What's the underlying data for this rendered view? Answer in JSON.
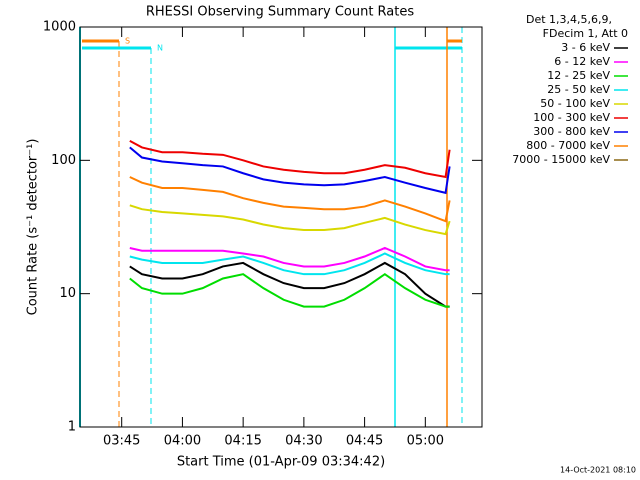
{
  "chart_data": {
    "type": "line",
    "title": "RHESSI Observing Summary Count Rates",
    "x_label": "Start Time (01-Apr-09 03:34:42)",
    "y_label": "Count Rate (s⁻¹ detector⁻¹)",
    "legend_header": [
      "Det 1,3,4,5,6,9,",
      "FDecim 1, Att 0"
    ],
    "footer": "14-Oct-2021 08:10",
    "annotations": [
      "S",
      "N"
    ],
    "log_y": true,
    "legend": "right",
    "xlim": [
      "03:34:42",
      "05:14:00"
    ],
    "xticks": [
      "03:45",
      "04:00",
      "04:15",
      "04:30",
      "04:45",
      "05:00"
    ],
    "ylim": [
      1,
      1000
    ],
    "yticks": [
      1,
      10,
      100,
      1000
    ],
    "x": [
      "03:47",
      "03:50",
      "03:55",
      "04:00",
      "04:05",
      "04:10",
      "04:15",
      "04:20",
      "04:25",
      "04:30",
      "04:35",
      "04:40",
      "04:45",
      "04:50",
      "04:55",
      "05:00",
      "05:05",
      "05:06"
    ],
    "series": [
      {
        "name": "3 - 6 keV",
        "color": "#000000",
        "values": [
          16,
          14,
          13,
          13,
          14,
          16,
          17,
          14,
          12,
          11,
          11,
          12,
          14,
          17,
          14,
          10,
          8,
          8
        ]
      },
      {
        "name": "6 - 12 keV",
        "color": "#ff00ff",
        "values": [
          22,
          21,
          21,
          21,
          21,
          21,
          20,
          19,
          17,
          16,
          16,
          17,
          19,
          22,
          19,
          16,
          15,
          15
        ]
      },
      {
        "name": "12 - 25 keV",
        "color": "#00dd00",
        "values": [
          13,
          11,
          10,
          10,
          11,
          13,
          14,
          11,
          9,
          8,
          8,
          9,
          11,
          14,
          11,
          9,
          8,
          8
        ]
      },
      {
        "name": "25 - 50 keV",
        "color": "#00e5ee",
        "values": [
          19,
          18,
          17,
          17,
          17,
          18,
          19,
          17,
          15,
          14,
          14,
          15,
          17,
          20,
          17,
          15,
          14,
          14
        ]
      },
      {
        "name": "50 - 100 keV",
        "color": "#d8d800",
        "values": [
          46,
          43,
          41,
          40,
          39,
          38,
          36,
          33,
          31,
          30,
          30,
          31,
          34,
          37,
          33,
          30,
          28,
          35
        ]
      },
      {
        "name": "100 - 300 keV",
        "color": "#ee0000",
        "values": [
          140,
          125,
          115,
          115,
          112,
          110,
          100,
          90,
          85,
          82,
          80,
          80,
          85,
          92,
          88,
          80,
          75,
          120
        ]
      },
      {
        "name": "300 - 800 keV",
        "color": "#0000ee",
        "values": [
          125,
          105,
          98,
          95,
          92,
          90,
          80,
          72,
          68,
          66,
          65,
          66,
          70,
          75,
          68,
          62,
          57,
          90
        ]
      },
      {
        "name": "800 - 7000 keV",
        "color": "#ff8000",
        "values": [
          75,
          68,
          62,
          62,
          60,
          58,
          52,
          48,
          45,
          44,
          43,
          43,
          45,
          50,
          45,
          40,
          35,
          50
        ]
      },
      {
        "name": "7000 - 15000 keV",
        "color": "#8b6914",
        "values": [
          null,
          null,
          null,
          null,
          null,
          null,
          null,
          null,
          null,
          null,
          null,
          null,
          null,
          null,
          null,
          null,
          null,
          null
        ]
      }
    ]
  }
}
